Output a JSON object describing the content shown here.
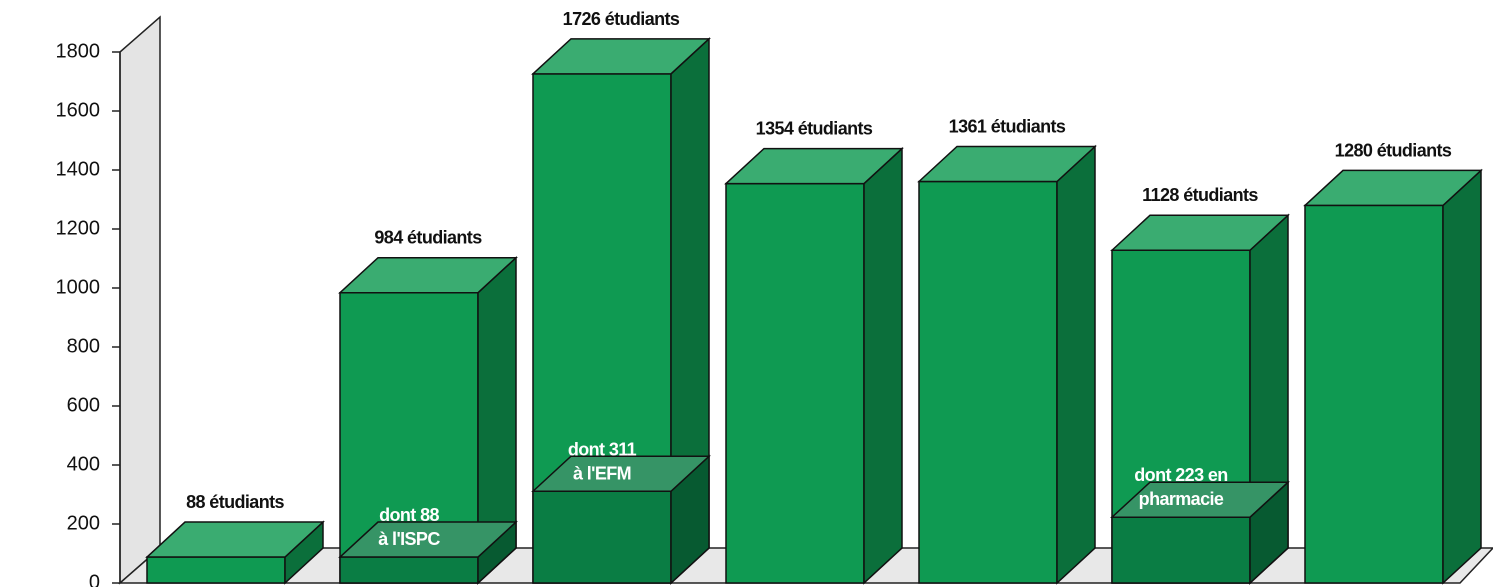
{
  "chart_data": {
    "type": "bar3d",
    "categories": [
      null,
      null,
      null,
      null,
      null,
      null,
      null
    ],
    "series": [
      {
        "color": "#0f9a52",
        "values": [
          88,
          984,
          1726,
          1354,
          1361,
          1128,
          1280
        ],
        "value_labels": [
          "88 étudiants",
          "984 étudiants",
          "1726 étudiants",
          "1354 étudiants",
          "1361 étudiants",
          "1128 étudiants",
          "1280 étudiants"
        ]
      },
      {
        "color": "#0a7d44",
        "values": [
          null,
          88,
          311,
          null,
          null,
          223,
          null
        ],
        "value_labels": [
          null,
          [
            "dont 88",
            "à l'ISPC"
          ],
          [
            "dont 311",
            "à l'EFM"
          ],
          null,
          null,
          [
            "dont 223 en",
            "pharmacie"
          ],
          null
        ]
      }
    ],
    "ylim": [
      0,
      1800
    ],
    "yticks": [
      0,
      200,
      400,
      600,
      800,
      1000,
      1200,
      1400,
      1600,
      1800
    ],
    "grid": false
  }
}
